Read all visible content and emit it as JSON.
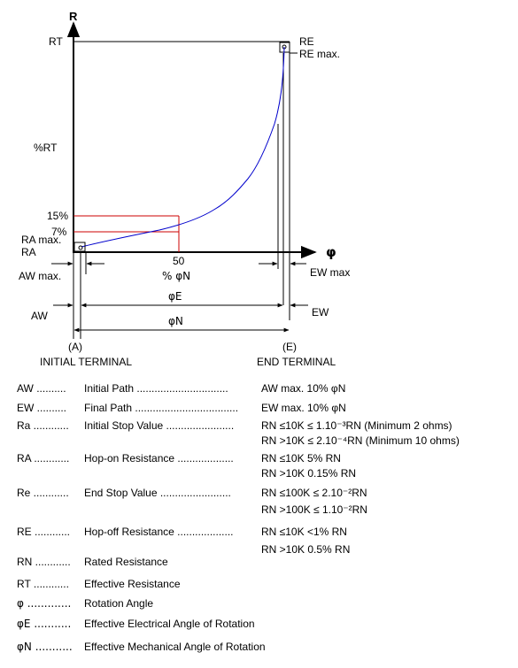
{
  "diagram": {
    "y_axis_label": "R",
    "x_axis_label": "φ",
    "rt_label": "RT",
    "re_label": "RE",
    "re_max_label": "RE max.",
    "pct_rt_label": "%RT",
    "pct15_label": "15%",
    "pct7_label": "7%",
    "ra_max_label": "RA max.",
    "ra_label": "RA",
    "tick_50_label": "50",
    "pct_phin_label": "% φN",
    "aw_max_label": "AW max.",
    "ew_max_label": "EW max",
    "phie_label": "φE",
    "aw_label": "AW",
    "ew_label": "EW",
    "phin_label": "φN",
    "a_label": "(A)",
    "e_label": "(E)",
    "initial_terminal": "INITIAL TERMINAL",
    "end_terminal": "END TERMINAL",
    "curve_color": "#0000cc",
    "marker_color": "#cc0000"
  },
  "legend": [
    {
      "abbr": "AW ..........",
      "name": "Initial Path   ...............................",
      "values": [
        "AW max. 10% φN"
      ]
    },
    {
      "abbr": "EW ..........",
      "name": "Final Path   ...................................",
      "values": [
        "EW max. 10% φN"
      ]
    },
    {
      "abbr": "Ra ............",
      "name": "Initial Stop Value   .......................",
      "values": [
        "RN ≤10K  ≤ 1.10⁻³RN (Minimum 2 ohms)",
        "RN >10K  ≤ 2.10⁻⁴RN (Minimum 10 ohms)"
      ]
    },
    {
      "abbr": "RA ............",
      "name": "Hop-on Resistance   ...................",
      "values": [
        "RN ≤10K  5% RN",
        "RN >10K  0.15% RN"
      ]
    },
    {
      "abbr": "Re ............",
      "name": "End Stop Value  ........................",
      "values": [
        "RN ≤100K ≤ 2.10⁻²RN",
        "RN >100K ≤ 1.10⁻²RN"
      ]
    },
    {
      "abbr": "RE ............",
      "name": "Hop-off Resistance   ...................",
      "values": [
        "RN ≤10K <1% RN",
        "RN >10K 0.5% RN"
      ]
    },
    {
      "abbr": "RN ............",
      "name": "Rated Resistance",
      "values": []
    },
    {
      "abbr": "RT ............",
      "name": "Effective Resistance",
      "values": []
    },
    {
      "abbr": "φ  .............",
      "name": "Rotation Angle",
      "values": []
    },
    {
      "abbr": "φE  ...........",
      "name": "Effective Electrical Angle of Rotation",
      "values": []
    },
    {
      "abbr": "φN  ...........",
      "name": "Effective Mechanical Angle of Rotation",
      "values": []
    }
  ]
}
